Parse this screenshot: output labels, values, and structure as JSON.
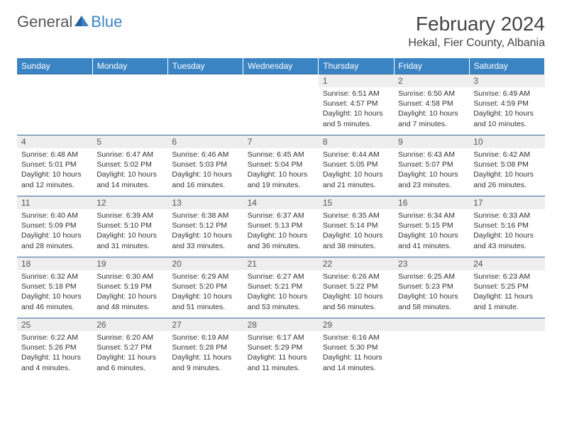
{
  "logo": {
    "text1": "General",
    "text2": "Blue"
  },
  "title": "February 2024",
  "location": "Hekal, Fier County, Albania",
  "colors": {
    "header_bg": "#3b84c4",
    "header_text": "#ffffff",
    "daynum_bg": "#eeeeee",
    "border": "#3b6a9a",
    "logo_blue": "#3b84c4"
  },
  "weekdays": [
    "Sunday",
    "Monday",
    "Tuesday",
    "Wednesday",
    "Thursday",
    "Friday",
    "Saturday"
  ],
  "weeks": [
    [
      null,
      null,
      null,
      null,
      {
        "n": "1",
        "sr": "Sunrise: 6:51 AM",
        "ss": "Sunset: 4:57 PM",
        "dl": "Daylight: 10 hours and 5 minutes."
      },
      {
        "n": "2",
        "sr": "Sunrise: 6:50 AM",
        "ss": "Sunset: 4:58 PM",
        "dl": "Daylight: 10 hours and 7 minutes."
      },
      {
        "n": "3",
        "sr": "Sunrise: 6:49 AM",
        "ss": "Sunset: 4:59 PM",
        "dl": "Daylight: 10 hours and 10 minutes."
      }
    ],
    [
      {
        "n": "4",
        "sr": "Sunrise: 6:48 AM",
        "ss": "Sunset: 5:01 PM",
        "dl": "Daylight: 10 hours and 12 minutes."
      },
      {
        "n": "5",
        "sr": "Sunrise: 6:47 AM",
        "ss": "Sunset: 5:02 PM",
        "dl": "Daylight: 10 hours and 14 minutes."
      },
      {
        "n": "6",
        "sr": "Sunrise: 6:46 AM",
        "ss": "Sunset: 5:03 PM",
        "dl": "Daylight: 10 hours and 16 minutes."
      },
      {
        "n": "7",
        "sr": "Sunrise: 6:45 AM",
        "ss": "Sunset: 5:04 PM",
        "dl": "Daylight: 10 hours and 19 minutes."
      },
      {
        "n": "8",
        "sr": "Sunrise: 6:44 AM",
        "ss": "Sunset: 5:05 PM",
        "dl": "Daylight: 10 hours and 21 minutes."
      },
      {
        "n": "9",
        "sr": "Sunrise: 6:43 AM",
        "ss": "Sunset: 5:07 PM",
        "dl": "Daylight: 10 hours and 23 minutes."
      },
      {
        "n": "10",
        "sr": "Sunrise: 6:42 AM",
        "ss": "Sunset: 5:08 PM",
        "dl": "Daylight: 10 hours and 26 minutes."
      }
    ],
    [
      {
        "n": "11",
        "sr": "Sunrise: 6:40 AM",
        "ss": "Sunset: 5:09 PM",
        "dl": "Daylight: 10 hours and 28 minutes."
      },
      {
        "n": "12",
        "sr": "Sunrise: 6:39 AM",
        "ss": "Sunset: 5:10 PM",
        "dl": "Daylight: 10 hours and 31 minutes."
      },
      {
        "n": "13",
        "sr": "Sunrise: 6:38 AM",
        "ss": "Sunset: 5:12 PM",
        "dl": "Daylight: 10 hours and 33 minutes."
      },
      {
        "n": "14",
        "sr": "Sunrise: 6:37 AM",
        "ss": "Sunset: 5:13 PM",
        "dl": "Daylight: 10 hours and 36 minutes."
      },
      {
        "n": "15",
        "sr": "Sunrise: 6:35 AM",
        "ss": "Sunset: 5:14 PM",
        "dl": "Daylight: 10 hours and 38 minutes."
      },
      {
        "n": "16",
        "sr": "Sunrise: 6:34 AM",
        "ss": "Sunset: 5:15 PM",
        "dl": "Daylight: 10 hours and 41 minutes."
      },
      {
        "n": "17",
        "sr": "Sunrise: 6:33 AM",
        "ss": "Sunset: 5:16 PM",
        "dl": "Daylight: 10 hours and 43 minutes."
      }
    ],
    [
      {
        "n": "18",
        "sr": "Sunrise: 6:32 AM",
        "ss": "Sunset: 5:18 PM",
        "dl": "Daylight: 10 hours and 46 minutes."
      },
      {
        "n": "19",
        "sr": "Sunrise: 6:30 AM",
        "ss": "Sunset: 5:19 PM",
        "dl": "Daylight: 10 hours and 48 minutes."
      },
      {
        "n": "20",
        "sr": "Sunrise: 6:29 AM",
        "ss": "Sunset: 5:20 PM",
        "dl": "Daylight: 10 hours and 51 minutes."
      },
      {
        "n": "21",
        "sr": "Sunrise: 6:27 AM",
        "ss": "Sunset: 5:21 PM",
        "dl": "Daylight: 10 hours and 53 minutes."
      },
      {
        "n": "22",
        "sr": "Sunrise: 6:26 AM",
        "ss": "Sunset: 5:22 PM",
        "dl": "Daylight: 10 hours and 56 minutes."
      },
      {
        "n": "23",
        "sr": "Sunrise: 6:25 AM",
        "ss": "Sunset: 5:23 PM",
        "dl": "Daylight: 10 hours and 58 minutes."
      },
      {
        "n": "24",
        "sr": "Sunrise: 6:23 AM",
        "ss": "Sunset: 5:25 PM",
        "dl": "Daylight: 11 hours and 1 minute."
      }
    ],
    [
      {
        "n": "25",
        "sr": "Sunrise: 6:22 AM",
        "ss": "Sunset: 5:26 PM",
        "dl": "Daylight: 11 hours and 4 minutes."
      },
      {
        "n": "26",
        "sr": "Sunrise: 6:20 AM",
        "ss": "Sunset: 5:27 PM",
        "dl": "Daylight: 11 hours and 6 minutes."
      },
      {
        "n": "27",
        "sr": "Sunrise: 6:19 AM",
        "ss": "Sunset: 5:28 PM",
        "dl": "Daylight: 11 hours and 9 minutes."
      },
      {
        "n": "28",
        "sr": "Sunrise: 6:17 AM",
        "ss": "Sunset: 5:29 PM",
        "dl": "Daylight: 11 hours and 11 minutes."
      },
      {
        "n": "29",
        "sr": "Sunrise: 6:16 AM",
        "ss": "Sunset: 5:30 PM",
        "dl": "Daylight: 11 hours and 14 minutes."
      },
      null,
      null
    ]
  ]
}
